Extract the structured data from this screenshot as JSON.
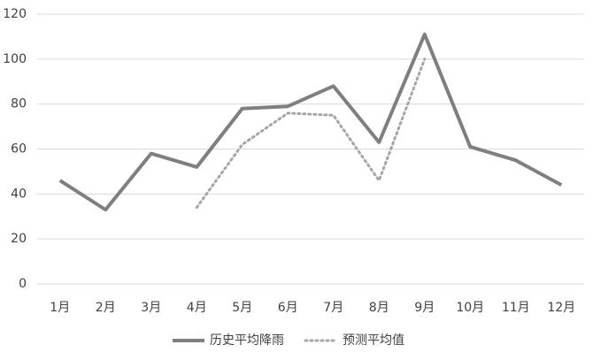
{
  "chart_data": {
    "type": "line",
    "categories": [
      "1月",
      "2月",
      "3月",
      "4月",
      "5月",
      "6月",
      "7月",
      "8月",
      "9月",
      "10月",
      "11月",
      "12月"
    ],
    "series": [
      {
        "name": "历史平均降雨",
        "color": "#7f7f7f",
        "style": "solid",
        "values": [
          46,
          33,
          58,
          52,
          78,
          79,
          88,
          63,
          111,
          61,
          55,
          44
        ]
      },
      {
        "name": "预测平均值",
        "color": "#a6a6a6",
        "style": "dotted",
        "values": [
          null,
          null,
          null,
          34,
          62,
          76,
          75,
          46,
          100,
          null,
          null,
          null
        ]
      }
    ],
    "ylim": [
      0,
      120
    ],
    "yticks": [
      0,
      20,
      40,
      60,
      80,
      100,
      120
    ],
    "grid": true,
    "legend": "bottom"
  }
}
